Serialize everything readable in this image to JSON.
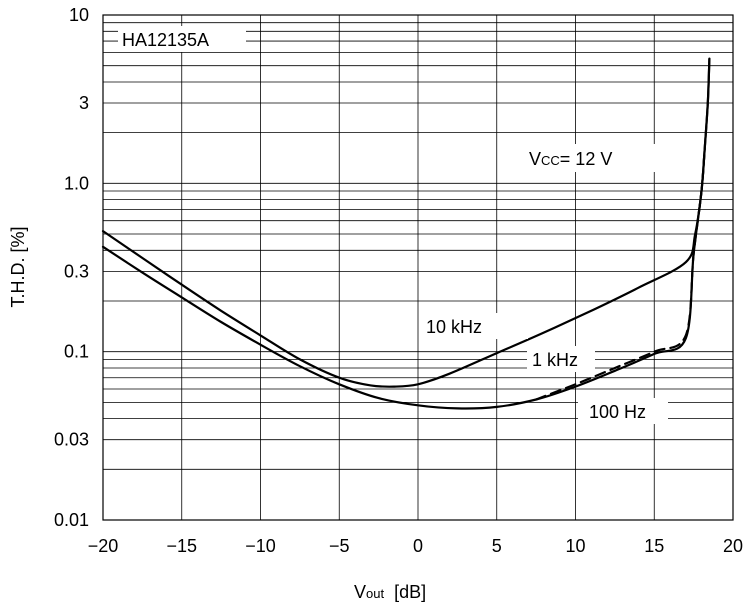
{
  "chart_data": {
    "type": "line",
    "title": "HA12135A",
    "xlabel": "V",
    "xlabel_sub": "out",
    "xlabel_unit": "[dB]",
    "ylabel": "T.H.D. [%]",
    "xlim": [
      -20,
      20
    ],
    "ylim": [
      0.01,
      10
    ],
    "y_scale": "log",
    "x_ticks": [
      -20,
      -15,
      -10,
      -5,
      0,
      5,
      10,
      15,
      20
    ],
    "x_tick_labels": [
      "−20",
      "−15",
      "−10",
      "−5",
      "0",
      "5",
      "10",
      "15",
      "20"
    ],
    "y_ticks": [
      0.01,
      0.03,
      0.1,
      0.3,
      1.0,
      3,
      10
    ],
    "y_tick_labels": [
      "0.01",
      "0.03",
      "0.1",
      "0.3",
      "1.0",
      "3",
      "10"
    ],
    "grid": true,
    "annotations": {
      "vcc_main": "V",
      "vcc_sub": "CC",
      "vcc_value": "= 12 V"
    },
    "series": [
      {
        "name": "10 kHz",
        "dash": false,
        "x": [
          -20,
          -17.5,
          -15,
          -12.5,
          -10,
          -7.5,
          -5,
          -3,
          -1.5,
          0,
          2,
          5,
          8,
          11,
          14,
          17,
          17.6,
          18.0,
          18.2,
          18.4,
          18.5
        ],
        "y": [
          0.52,
          0.36,
          0.25,
          0.175,
          0.125,
          0.09,
          0.07,
          0.063,
          0.062,
          0.064,
          0.074,
          0.098,
          0.13,
          0.175,
          0.24,
          0.34,
          0.5,
          0.9,
          1.6,
          3.0,
          5.5
        ]
      },
      {
        "name": "1 kHz",
        "dash": false,
        "x": [
          -20,
          -17.5,
          -15,
          -12.5,
          -10,
          -7.5,
          -5,
          -2.5,
          0,
          2.5,
          5,
          7.5,
          10,
          12.5,
          15,
          17,
          17.5,
          18.0,
          18.2,
          18.4,
          18.5
        ],
        "y": [
          0.42,
          0.295,
          0.21,
          0.15,
          0.11,
          0.082,
          0.064,
          0.053,
          0.048,
          0.046,
          0.047,
          0.052,
          0.062,
          0.077,
          0.097,
          0.12,
          0.38,
          0.9,
          1.6,
          3.0,
          5.5
        ]
      },
      {
        "name": "100 Hz",
        "dash": true,
        "x": [
          7.5,
          10,
          12.5,
          15,
          17,
          17.5,
          18.0,
          18.2
        ],
        "y": [
          0.052,
          0.064,
          0.08,
          0.1,
          0.125,
          0.38,
          0.9,
          1.6
        ]
      }
    ]
  }
}
